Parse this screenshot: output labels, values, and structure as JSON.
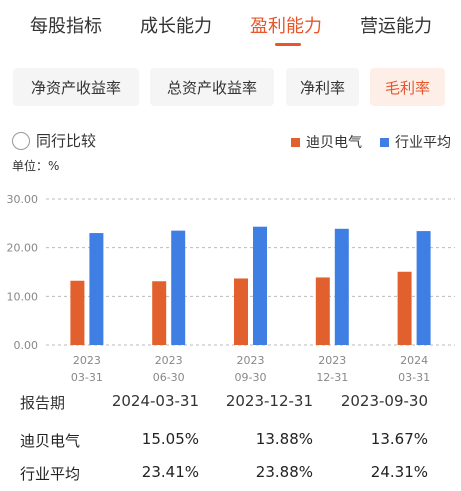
{
  "tabs": [
    {
      "label": "每股指标",
      "active": false
    },
    {
      "label": "成长能力",
      "active": false
    },
    {
      "label": "盈利能力",
      "active": true
    },
    {
      "label": "营运能力",
      "active": false
    }
  ],
  "subtabs": [
    {
      "label": "净资产收益率",
      "active": false
    },
    {
      "label": "总资产收益率",
      "active": false
    },
    {
      "label": "净利率",
      "active": false
    },
    {
      "label": "毛利率",
      "active": true
    }
  ],
  "compare_label": "同行比较",
  "unit_label": "单位：%",
  "colors": {
    "accent": "#e8562a",
    "company": "#e2602d",
    "industry": "#3f7fe3"
  },
  "chart_data": {
    "type": "bar",
    "categories": [
      [
        "2023",
        "03-31"
      ],
      [
        "2023",
        "06-30"
      ],
      [
        "2023",
        "09-30"
      ],
      [
        "2023",
        "12-31"
      ],
      [
        "2024",
        "03-31"
      ]
    ],
    "series": [
      {
        "name": "迪贝电气",
        "values": [
          13.2,
          13.1,
          13.67,
          13.88,
          15.05
        ]
      },
      {
        "name": "行业平均",
        "values": [
          23.0,
          23.5,
          24.31,
          23.88,
          23.41
        ]
      }
    ],
    "yticks": [
      "30.00",
      "20.00",
      "10.00",
      "0.00"
    ],
    "ylim": [
      0,
      30
    ],
    "grid": true,
    "legend_position": "top-right"
  },
  "table": {
    "header": {
      "label": "报告期",
      "cols": [
        "2024-03-31",
        "2023-12-31",
        "2023-09-30"
      ]
    },
    "rows": [
      {
        "label": "迪贝电气",
        "cols": [
          "15.05%",
          "13.88%",
          "13.67%"
        ]
      },
      {
        "label": "行业平均",
        "cols": [
          "23.41%",
          "23.88%",
          "24.31%"
        ]
      }
    ]
  }
}
